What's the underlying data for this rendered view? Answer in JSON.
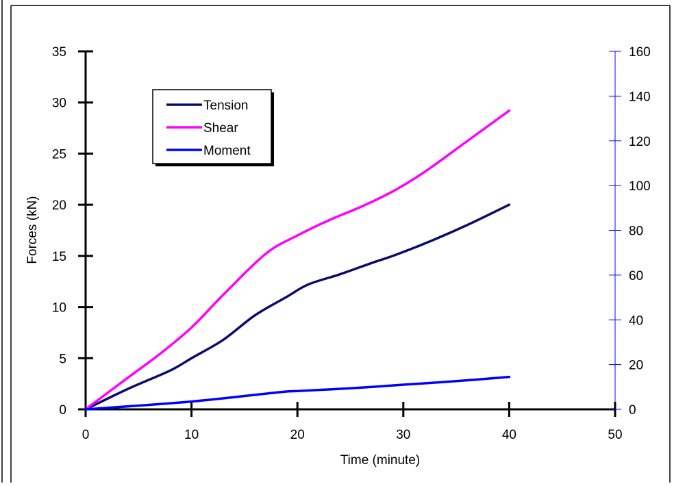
{
  "chart_data": {
    "type": "line",
    "xlabel": "Time (minute)",
    "ylabel": "Forces (kN)",
    "y2label": "",
    "xlim": [
      0,
      50
    ],
    "ylim": [
      0,
      35
    ],
    "y2lim": [
      0,
      160
    ],
    "x_ticks": [
      0,
      10,
      20,
      30,
      40,
      50
    ],
    "y_ticks": [
      0,
      5,
      10,
      15,
      20,
      25,
      30,
      35
    ],
    "y2_ticks": [
      0,
      20,
      40,
      60,
      80,
      100,
      120,
      140,
      160
    ],
    "grid": false,
    "legend_position": "upper-left",
    "series": [
      {
        "name": "Tension",
        "axis": "left",
        "color": "#0b0b6b",
        "x": [
          0,
          4,
          8,
          10,
          13,
          16,
          19,
          21,
          24,
          27,
          29,
          32,
          36,
          40
        ],
        "values": [
          0,
          2,
          3.8,
          5,
          6.8,
          9.2,
          11,
          12.2,
          13.2,
          14.3,
          15,
          16.2,
          18,
          20
        ]
      },
      {
        "name": "Shear",
        "axis": "left",
        "color": "#ff00ff",
        "x": [
          0,
          4,
          7,
          10,
          13,
          17,
          20,
          23,
          26,
          29,
          32,
          36,
          40
        ],
        "values": [
          0,
          3.1,
          5.4,
          8,
          11.2,
          15.2,
          17,
          18.5,
          19.8,
          21.3,
          23.2,
          26.2,
          29.2
        ]
      },
      {
        "name": "Moment",
        "axis": "right",
        "color": "#0000ff",
        "x": [
          0,
          10,
          18,
          20,
          25,
          30,
          35,
          40
        ],
        "values": [
          0,
          3.5,
          7.5,
          8.2,
          9.4,
          11,
          12.6,
          14.5
        ]
      }
    ]
  }
}
